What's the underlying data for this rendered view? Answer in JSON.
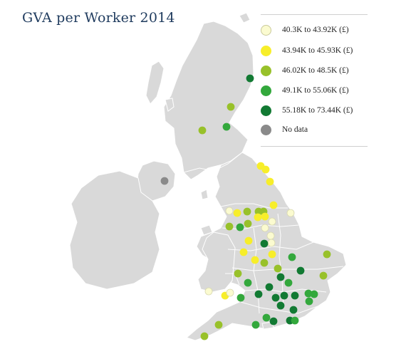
{
  "title": "GVA per Worker 2014",
  "colors": {
    "land": "#d9d9d9",
    "border": "#ffffff",
    "title": "#1f3b5e"
  },
  "legend": [
    {
      "label": "40.3K to 43.92K (£)",
      "color": "#fbfbd0",
      "stroke": "#c9c99a"
    },
    {
      "label": "43.94K to 45.93K (£)",
      "color": "#f7ee2a",
      "stroke": "#f7ee2a"
    },
    {
      "label": "46.02K to 48.5K (£)",
      "color": "#98c12a",
      "stroke": "#98c12a"
    },
    {
      "label": "49.1K to 55.06K (£)",
      "color": "#33a83c",
      "stroke": "#33a83c"
    },
    {
      "label": "55.18K to 73.44K (£)",
      "color": "#127a33",
      "stroke": "#127a33"
    },
    {
      "label": "No data",
      "color": "#8a8a8a",
      "stroke": "#8a8a8a"
    }
  ]
}
